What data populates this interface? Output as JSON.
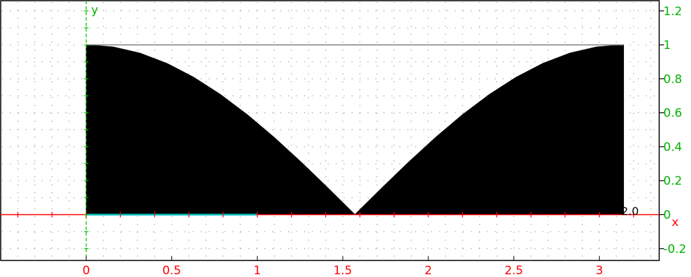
{
  "chart_data": {
    "type": "area",
    "title": "",
    "xlabel": "x",
    "ylabel": "y",
    "xlim": [
      -0.5,
      3.35
    ],
    "ylim": [
      -0.27,
      1.26
    ],
    "x_ticks": [
      {
        "value": 0,
        "label": "0"
      },
      {
        "value": 0.5,
        "label": "0.5"
      },
      {
        "value": 1,
        "label": "1"
      },
      {
        "value": 1.5,
        "label": "1.5"
      },
      {
        "value": 2,
        "label": "2"
      },
      {
        "value": 2.5,
        "label": "2.5"
      },
      {
        "value": 3,
        "label": "3"
      }
    ],
    "y_ticks": [
      {
        "value": 1.2,
        "label": "1.2"
      },
      {
        "value": 1,
        "label": "1"
      },
      {
        "value": 0.8,
        "label": "0.8"
      },
      {
        "value": 0.6,
        "label": "0.6"
      },
      {
        "value": 0.4,
        "label": "0.4"
      },
      {
        "value": 0.2,
        "label": "0.2"
      },
      {
        "value": 0,
        "label": "0"
      },
      {
        "value": -0.2,
        "label": "-0.2"
      }
    ],
    "grid": true,
    "series": [
      {
        "fill": "#000000",
        "x": [
          0,
          0.1571,
          0.3142,
          0.4712,
          0.6283,
          0.7854,
          0.9425,
          1.0996,
          1.2566,
          1.4137,
          1.5708,
          1.7279,
          1.885,
          2.042,
          2.1991,
          2.3562,
          2.5133,
          2.6704,
          2.8274,
          2.9845,
          3.1416
        ],
        "y": [
          1,
          0.9877,
          0.9511,
          0.891,
          0.809,
          0.7071,
          0.5878,
          0.454,
          0.309,
          0.1564,
          0,
          0.1564,
          0.309,
          0.454,
          0.5878,
          0.7071,
          0.809,
          0.891,
          0.9511,
          0.9877,
          1
        ]
      }
    ],
    "box": {
      "x0": 0,
      "x1": 3.1416,
      "y0": 0,
      "y1": 1
    },
    "cyan_segment": {
      "x0": 0,
      "x1": 1
    },
    "annotation": {
      "text": "2.0",
      "x": 3.1416,
      "y": 0
    },
    "colors": {
      "x_axis": "#ff0000",
      "y_axis": "#00c000",
      "x_labels": "#ff0000",
      "y_labels": "#00b000",
      "fill": "#000000",
      "box": "#808080",
      "cyan": "#00c0c0",
      "grid": "#999999"
    }
  }
}
